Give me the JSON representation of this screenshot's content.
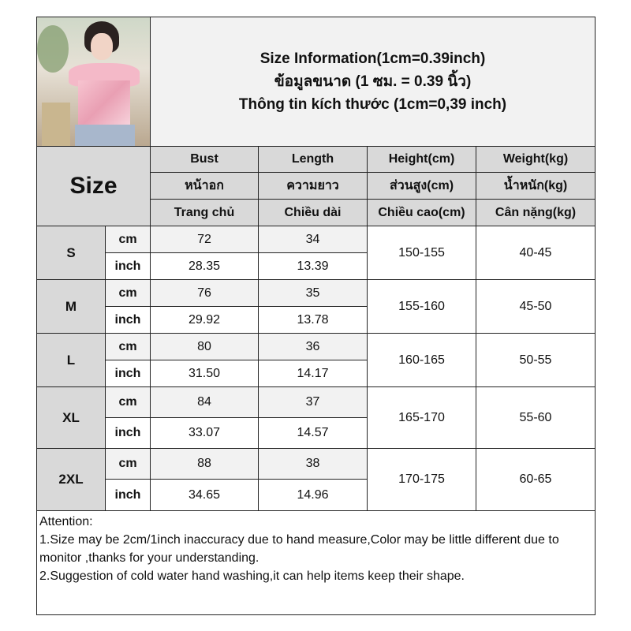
{
  "header": {
    "line1": "Size Information(1cm=0.39inch)",
    "line2": "ข้อมูลขนาด (1 ซม. = 0.39 นิ้ว)",
    "line3": "Thông tin kích thước (1cm=0,39 inch)"
  },
  "size_label": "Size",
  "columns": [
    {
      "en": "Bust",
      "th": "หน้าอก",
      "vi": "Trang chủ"
    },
    {
      "en": "Length",
      "th": "ความยาว",
      "vi": "Chiều dài"
    },
    {
      "en": "Height(cm)",
      "th": "ส่วนสูง(cm)",
      "vi": "Chiều cao(cm)"
    },
    {
      "en": "Weight(kg)",
      "th": "น้ำหนัก(kg)",
      "vi": "Cân nặng(kg)"
    }
  ],
  "units": {
    "cm": "cm",
    "inch": "inch"
  },
  "rows": [
    {
      "size": "S",
      "bust_cm": "72",
      "length_cm": "34",
      "bust_inch": "28.35",
      "length_inch": "13.39",
      "height": "150-155",
      "weight": "40-45"
    },
    {
      "size": "M",
      "bust_cm": "76",
      "length_cm": "35",
      "bust_inch": "29.92",
      "length_inch": "13.78",
      "height": "155-160",
      "weight": "45-50"
    },
    {
      "size": "L",
      "bust_cm": "80",
      "length_cm": "36",
      "bust_inch": "31.50",
      "length_inch": "14.17",
      "height": "160-165",
      "weight": "50-55"
    },
    {
      "size": "XL",
      "bust_cm": "84",
      "length_cm": "37",
      "bust_inch": "33.07",
      "length_inch": "14.57",
      "height": "165-170",
      "weight": "55-60"
    },
    {
      "size": "2XL",
      "bust_cm": "88",
      "length_cm": "38",
      "bust_inch": "34.65",
      "length_inch": "14.96",
      "height": "170-175",
      "weight": "60-65"
    }
  ],
  "attention": {
    "title": "Attention:",
    "note1": "1.Size may be 2cm/1inch inaccuracy due to hand measure,Color may be little different due to monitor ,thanks for your understanding.",
    "note2": "2.Suggestion of cold water hand washing,it can help items keep their shape."
  },
  "colors": {
    "header_bg": "#f2f2f2",
    "column_header_bg": "#d9d9d9",
    "cm_row_bg": "#f2f2f2",
    "border": "#222222"
  }
}
